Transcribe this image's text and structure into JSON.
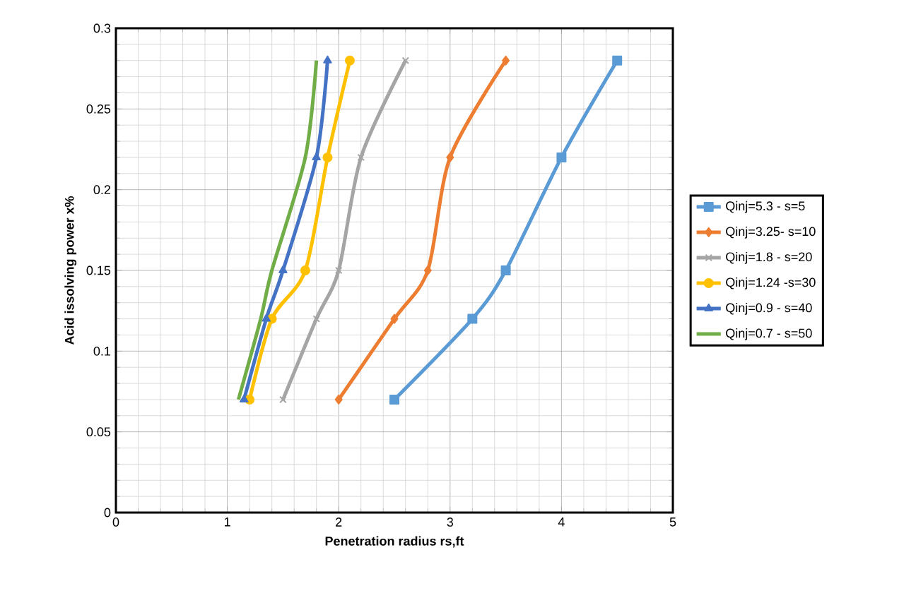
{
  "chart_data": {
    "type": "line",
    "xlabel": "Penetration radius rs,ft",
    "ylabel": "Acid issolving power x%",
    "xlim": [
      0,
      5
    ],
    "xticks": [
      0,
      1,
      2,
      3,
      4,
      5
    ],
    "ylim": [
      0,
      0.3
    ],
    "yticks": [
      0,
      0.05,
      0.1,
      0.15,
      0.2,
      0.25,
      0.3
    ],
    "grid": true,
    "legend": "right",
    "series": [
      {
        "name": "Qinj=5.3 - s=5",
        "color": "#5b9bd5",
        "marker": "square",
        "x": [
          2.5,
          3.2,
          3.5,
          4.0,
          4.5
        ],
        "values": [
          0.07,
          0.12,
          0.15,
          0.22,
          0.28
        ]
      },
      {
        "name": "Qinj=3.25- s=10",
        "color": "#ed7d31",
        "marker": "diamond",
        "x": [
          2.0,
          2.5,
          2.8,
          3.0,
          3.5
        ],
        "values": [
          0.07,
          0.12,
          0.15,
          0.22,
          0.28
        ]
      },
      {
        "name": "Qinj=1.8 - s=20",
        "color": "#a5a5a5",
        "marker": "cross",
        "x": [
          1.5,
          1.8,
          2.0,
          2.2,
          2.6
        ],
        "values": [
          0.07,
          0.12,
          0.15,
          0.22,
          0.28
        ]
      },
      {
        "name": "Qinj=1.24 -s=30",
        "color": "#ffc000",
        "marker": "circle",
        "x": [
          1.2,
          1.4,
          1.7,
          1.9,
          2.1
        ],
        "values": [
          0.07,
          0.12,
          0.15,
          0.22,
          0.28
        ]
      },
      {
        "name": "Qinj=0.9 - s=40",
        "color": "#4472c4",
        "marker": "triangle",
        "x": [
          1.15,
          1.35,
          1.5,
          1.8,
          1.9
        ],
        "values": [
          0.07,
          0.12,
          0.15,
          0.22,
          0.28
        ]
      },
      {
        "name": "Qinj=0.7 - s=50",
        "color": "#70ad47",
        "marker": "none",
        "x": [
          1.1,
          1.3,
          1.4,
          1.7,
          1.8
        ],
        "values": [
          0.07,
          0.12,
          0.15,
          0.22,
          0.28
        ]
      }
    ]
  }
}
